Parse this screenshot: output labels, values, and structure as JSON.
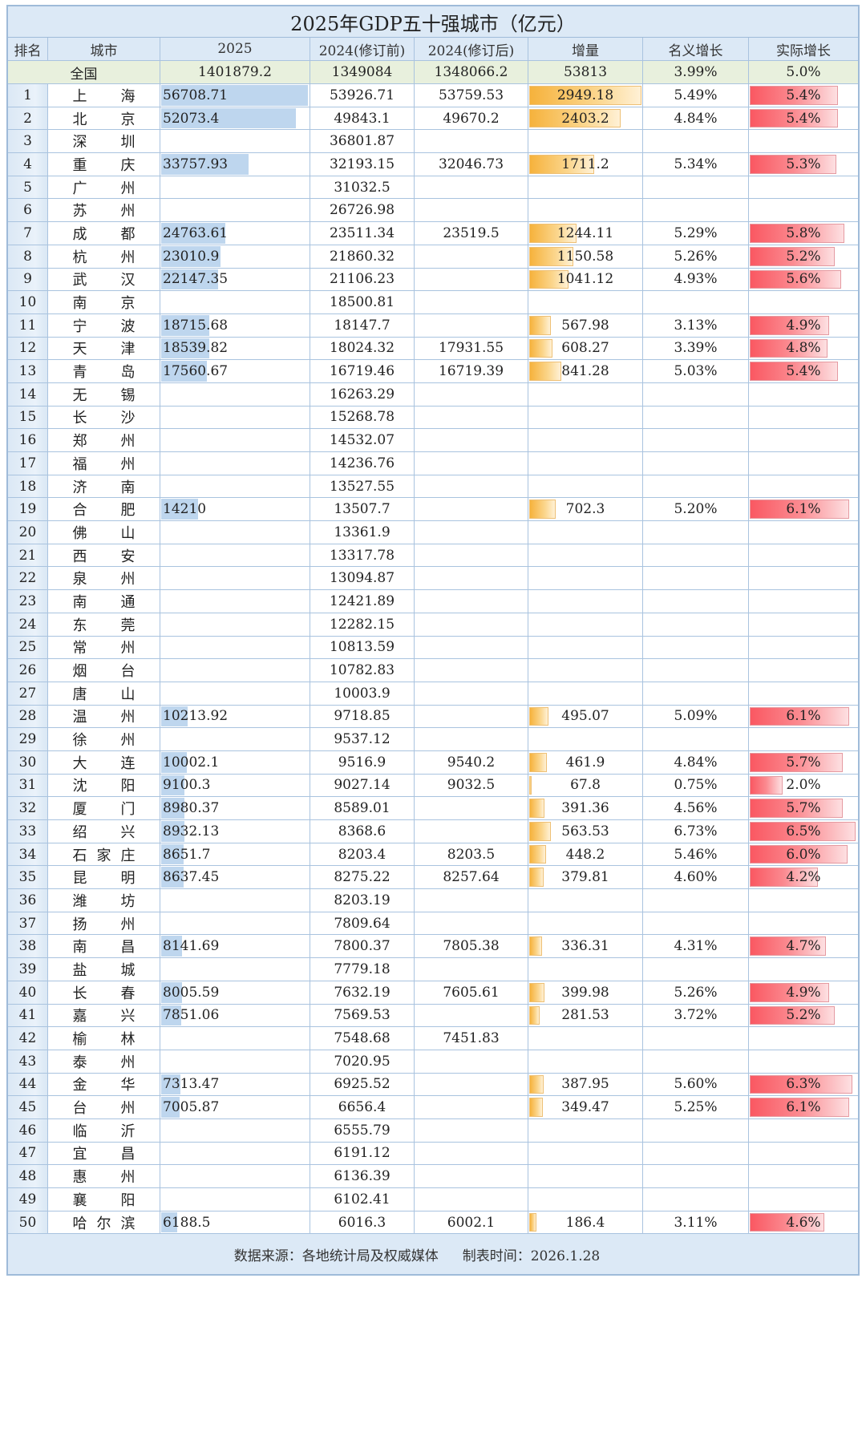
{
  "title": "2025年GDP五十强城市（亿元）",
  "headers": {
    "rank": "排名",
    "city": "城市",
    "gdp2025": "2025",
    "gdp2024_pre": "2024(修订前)",
    "gdp2024_post": "2024(修订后)",
    "increase": "增量",
    "nominal_growth": "名义增长",
    "real_growth": "实际增长"
  },
  "national": {
    "label": "全国",
    "gdp2025": "1401879.2",
    "gdp2024_pre": "1349084",
    "gdp2024_post": "1348066.2",
    "increase": "53813",
    "nominal_growth": "3.99%",
    "real_growth": "5.0%"
  },
  "colors": {
    "header_bg": "#dce9f6",
    "total_bg": "#e8f0dd",
    "grid": "#a9c3df",
    "bar_blue": "#bed6ee",
    "bar_orange": "#f6b23c",
    "bar_red": "#fa5862"
  },
  "rows": [
    {
      "rank": "1",
      "city": [
        "上",
        "海"
      ],
      "gdp2025": "56708.71",
      "pre": "53926.71",
      "post": "53759.53",
      "inc": "2949.18",
      "nom": "5.49%",
      "real": "5.4%"
    },
    {
      "rank": "2",
      "city": [
        "北",
        "京"
      ],
      "gdp2025": "52073.4",
      "pre": "49843.1",
      "post": "49670.2",
      "inc": "2403.2",
      "nom": "4.84%",
      "real": "5.4%"
    },
    {
      "rank": "3",
      "city": [
        "深",
        "圳"
      ],
      "gdp2025": "",
      "pre": "36801.87",
      "post": "",
      "inc": "",
      "nom": "",
      "real": ""
    },
    {
      "rank": "4",
      "city": [
        "重",
        "庆"
      ],
      "gdp2025": "33757.93",
      "pre": "32193.15",
      "post": "32046.73",
      "inc": "1711.2",
      "nom": "5.34%",
      "real": "5.3%"
    },
    {
      "rank": "5",
      "city": [
        "广",
        "州"
      ],
      "gdp2025": "",
      "pre": "31032.5",
      "post": "",
      "inc": "",
      "nom": "",
      "real": ""
    },
    {
      "rank": "6",
      "city": [
        "苏",
        "州"
      ],
      "gdp2025": "",
      "pre": "26726.98",
      "post": "",
      "inc": "",
      "nom": "",
      "real": ""
    },
    {
      "rank": "7",
      "city": [
        "成",
        "都"
      ],
      "gdp2025": "24763.61",
      "pre": "23511.34",
      "post": "23519.5",
      "inc": "1244.11",
      "nom": "5.29%",
      "real": "5.8%"
    },
    {
      "rank": "8",
      "city": [
        "杭",
        "州"
      ],
      "gdp2025": "23010.9",
      "pre": "21860.32",
      "post": "",
      "inc": "1150.58",
      "nom": "5.26%",
      "real": "5.2%"
    },
    {
      "rank": "9",
      "city": [
        "武",
        "汉"
      ],
      "gdp2025": "22147.35",
      "pre": "21106.23",
      "post": "",
      "inc": "1041.12",
      "nom": "4.93%",
      "real": "5.6%"
    },
    {
      "rank": "10",
      "city": [
        "南",
        "京"
      ],
      "gdp2025": "",
      "pre": "18500.81",
      "post": "",
      "inc": "",
      "nom": "",
      "real": ""
    },
    {
      "rank": "11",
      "city": [
        "宁",
        "波"
      ],
      "gdp2025": "18715.68",
      "pre": "18147.7",
      "post": "",
      "inc": "567.98",
      "nom": "3.13%",
      "real": "4.9%"
    },
    {
      "rank": "12",
      "city": [
        "天",
        "津"
      ],
      "gdp2025": "18539.82",
      "pre": "18024.32",
      "post": "17931.55",
      "inc": "608.27",
      "nom": "3.39%",
      "real": "4.8%"
    },
    {
      "rank": "13",
      "city": [
        "青",
        "岛"
      ],
      "gdp2025": "17560.67",
      "pre": "16719.46",
      "post": "16719.39",
      "inc": "841.28",
      "nom": "5.03%",
      "real": "5.4%"
    },
    {
      "rank": "14",
      "city": [
        "无",
        "锡"
      ],
      "gdp2025": "",
      "pre": "16263.29",
      "post": "",
      "inc": "",
      "nom": "",
      "real": ""
    },
    {
      "rank": "15",
      "city": [
        "长",
        "沙"
      ],
      "gdp2025": "",
      "pre": "15268.78",
      "post": "",
      "inc": "",
      "nom": "",
      "real": ""
    },
    {
      "rank": "16",
      "city": [
        "郑",
        "州"
      ],
      "gdp2025": "",
      "pre": "14532.07",
      "post": "",
      "inc": "",
      "nom": "",
      "real": ""
    },
    {
      "rank": "17",
      "city": [
        "福",
        "州"
      ],
      "gdp2025": "",
      "pre": "14236.76",
      "post": "",
      "inc": "",
      "nom": "",
      "real": ""
    },
    {
      "rank": "18",
      "city": [
        "济",
        "南"
      ],
      "gdp2025": "",
      "pre": "13527.55",
      "post": "",
      "inc": "",
      "nom": "",
      "real": ""
    },
    {
      "rank": "19",
      "city": [
        "合",
        "肥"
      ],
      "gdp2025": "14210",
      "pre": "13507.7",
      "post": "",
      "inc": "702.3",
      "nom": "5.20%",
      "real": "6.1%"
    },
    {
      "rank": "20",
      "city": [
        "佛",
        "山"
      ],
      "gdp2025": "",
      "pre": "13361.9",
      "post": "",
      "inc": "",
      "nom": "",
      "real": ""
    },
    {
      "rank": "21",
      "city": [
        "西",
        "安"
      ],
      "gdp2025": "",
      "pre": "13317.78",
      "post": "",
      "inc": "",
      "nom": "",
      "real": ""
    },
    {
      "rank": "22",
      "city": [
        "泉",
        "州"
      ],
      "gdp2025": "",
      "pre": "13094.87",
      "post": "",
      "inc": "",
      "nom": "",
      "real": ""
    },
    {
      "rank": "23",
      "city": [
        "南",
        "通"
      ],
      "gdp2025": "",
      "pre": "12421.89",
      "post": "",
      "inc": "",
      "nom": "",
      "real": ""
    },
    {
      "rank": "24",
      "city": [
        "东",
        "莞"
      ],
      "gdp2025": "",
      "pre": "12282.15",
      "post": "",
      "inc": "",
      "nom": "",
      "real": ""
    },
    {
      "rank": "25",
      "city": [
        "常",
        "州"
      ],
      "gdp2025": "",
      "pre": "10813.59",
      "post": "",
      "inc": "",
      "nom": "",
      "real": ""
    },
    {
      "rank": "26",
      "city": [
        "烟",
        "台"
      ],
      "gdp2025": "",
      "pre": "10782.83",
      "post": "",
      "inc": "",
      "nom": "",
      "real": ""
    },
    {
      "rank": "27",
      "city": [
        "唐",
        "山"
      ],
      "gdp2025": "",
      "pre": "10003.9",
      "post": "",
      "inc": "",
      "nom": "",
      "real": ""
    },
    {
      "rank": "28",
      "city": [
        "温",
        "州"
      ],
      "gdp2025": "10213.92",
      "pre": "9718.85",
      "post": "",
      "inc": "495.07",
      "nom": "5.09%",
      "real": "6.1%"
    },
    {
      "rank": "29",
      "city": [
        "徐",
        "州"
      ],
      "gdp2025": "",
      "pre": "9537.12",
      "post": "",
      "inc": "",
      "nom": "",
      "real": ""
    },
    {
      "rank": "30",
      "city": [
        "大",
        "连"
      ],
      "gdp2025": "10002.1",
      "pre": "9516.9",
      "post": "9540.2",
      "inc": "461.9",
      "nom": "4.84%",
      "real": "5.7%"
    },
    {
      "rank": "31",
      "city": [
        "沈",
        "阳"
      ],
      "gdp2025": "9100.3",
      "pre": "9027.14",
      "post": "9032.5",
      "inc": "67.8",
      "nom": "0.75%",
      "real": "2.0%"
    },
    {
      "rank": "32",
      "city": [
        "厦",
        "门"
      ],
      "gdp2025": "8980.37",
      "pre": "8589.01",
      "post": "",
      "inc": "391.36",
      "nom": "4.56%",
      "real": "5.7%"
    },
    {
      "rank": "33",
      "city": [
        "绍",
        "兴"
      ],
      "gdp2025": "8932.13",
      "pre": "8368.6",
      "post": "",
      "inc": "563.53",
      "nom": "6.73%",
      "real": "6.5%"
    },
    {
      "rank": "34",
      "city": [
        "石",
        "家",
        "庄"
      ],
      "gdp2025": "8651.7",
      "pre": "8203.4",
      "post": "8203.5",
      "inc": "448.2",
      "nom": "5.46%",
      "real": "6.0%"
    },
    {
      "rank": "35",
      "city": [
        "昆",
        "明"
      ],
      "gdp2025": "8637.45",
      "pre": "8275.22",
      "post": "8257.64",
      "inc": "379.81",
      "nom": "4.60%",
      "real": "4.2%"
    },
    {
      "rank": "36",
      "city": [
        "潍",
        "坊"
      ],
      "gdp2025": "",
      "pre": "8203.19",
      "post": "",
      "inc": "",
      "nom": "",
      "real": ""
    },
    {
      "rank": "37",
      "city": [
        "扬",
        "州"
      ],
      "gdp2025": "",
      "pre": "7809.64",
      "post": "",
      "inc": "",
      "nom": "",
      "real": ""
    },
    {
      "rank": "38",
      "city": [
        "南",
        "昌"
      ],
      "gdp2025": "8141.69",
      "pre": "7800.37",
      "post": "7805.38",
      "inc": "336.31",
      "nom": "4.31%",
      "real": "4.7%"
    },
    {
      "rank": "39",
      "city": [
        "盐",
        "城"
      ],
      "gdp2025": "",
      "pre": "7779.18",
      "post": "",
      "inc": "",
      "nom": "",
      "real": ""
    },
    {
      "rank": "40",
      "city": [
        "长",
        "春"
      ],
      "gdp2025": "8005.59",
      "pre": "7632.19",
      "post": "7605.61",
      "inc": "399.98",
      "nom": "5.26%",
      "real": "4.9%"
    },
    {
      "rank": "41",
      "city": [
        "嘉",
        "兴"
      ],
      "gdp2025": "7851.06",
      "pre": "7569.53",
      "post": "",
      "inc": "281.53",
      "nom": "3.72%",
      "real": "5.2%"
    },
    {
      "rank": "42",
      "city": [
        "榆",
        "林"
      ],
      "gdp2025": "",
      "pre": "7548.68",
      "post": "7451.83",
      "inc": "",
      "nom": "",
      "real": ""
    },
    {
      "rank": "43",
      "city": [
        "泰",
        "州"
      ],
      "gdp2025": "",
      "pre": "7020.95",
      "post": "",
      "inc": "",
      "nom": "",
      "real": ""
    },
    {
      "rank": "44",
      "city": [
        "金",
        "华"
      ],
      "gdp2025": "7313.47",
      "pre": "6925.52",
      "post": "",
      "inc": "387.95",
      "nom": "5.60%",
      "real": "6.3%"
    },
    {
      "rank": "45",
      "city": [
        "台",
        "州"
      ],
      "gdp2025": "7005.87",
      "pre": "6656.4",
      "post": "",
      "inc": "349.47",
      "nom": "5.25%",
      "real": "6.1%"
    },
    {
      "rank": "46",
      "city": [
        "临",
        "沂"
      ],
      "gdp2025": "",
      "pre": "6555.79",
      "post": "",
      "inc": "",
      "nom": "",
      "real": ""
    },
    {
      "rank": "47",
      "city": [
        "宜",
        "昌"
      ],
      "gdp2025": "",
      "pre": "6191.12",
      "post": "",
      "inc": "",
      "nom": "",
      "real": ""
    },
    {
      "rank": "48",
      "city": [
        "惠",
        "州"
      ],
      "gdp2025": "",
      "pre": "6136.39",
      "post": "",
      "inc": "",
      "nom": "",
      "real": ""
    },
    {
      "rank": "49",
      "city": [
        "襄",
        "阳"
      ],
      "gdp2025": "",
      "pre": "6102.41",
      "post": "",
      "inc": "",
      "nom": "",
      "real": ""
    },
    {
      "rank": "50",
      "city": [
        "哈",
        "尔",
        "滨"
      ],
      "gdp2025": "6188.5",
      "pre": "6016.3",
      "post": "6002.1",
      "inc": "186.4",
      "nom": "3.11%",
      "real": "4.6%"
    }
  ],
  "footer": {
    "source": "数据来源：各地统计局及权威媒体",
    "date": "制表时间：2026.1.28"
  }
}
